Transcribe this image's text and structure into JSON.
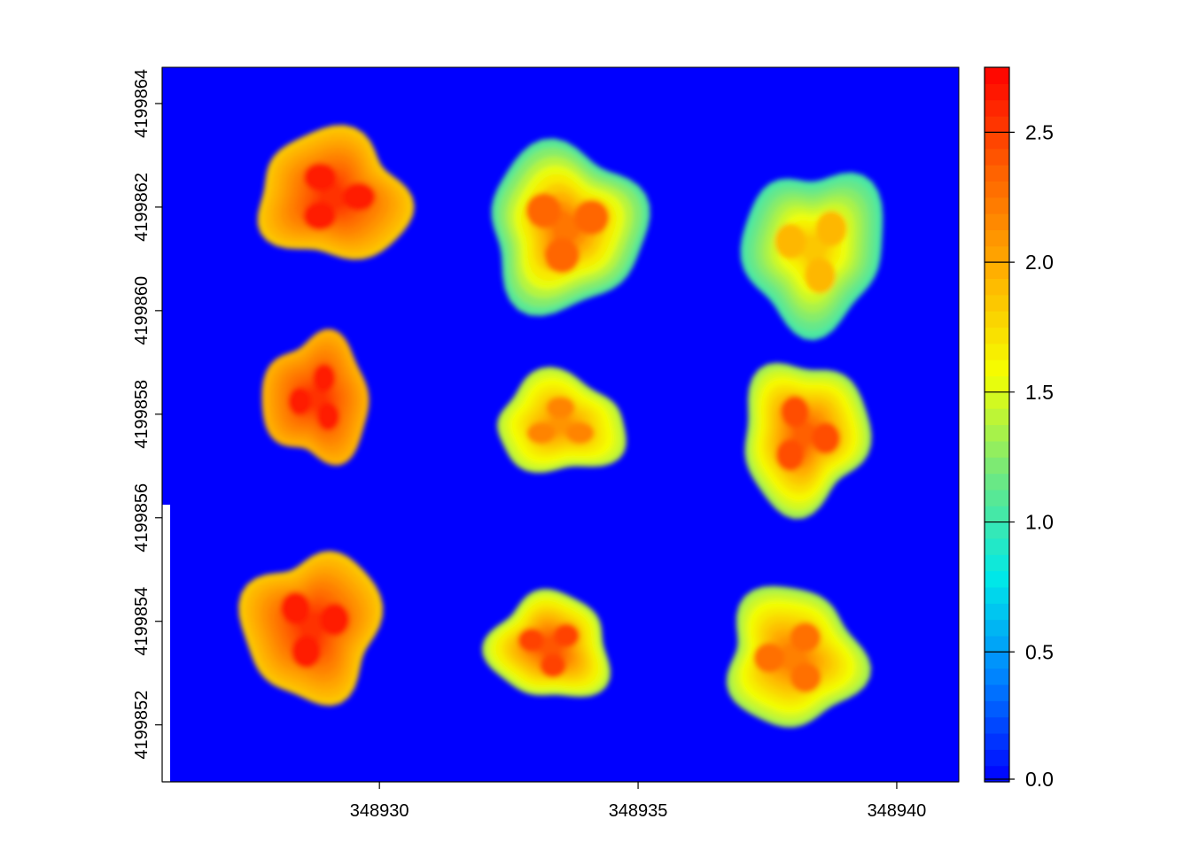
{
  "chart_data": {
    "type": "heatmap",
    "title": "",
    "xlabel": "",
    "ylabel": "",
    "xlim": [
      348925.8,
      348941.2
    ],
    "ylim": [
      4199850.9,
      4199864.7
    ],
    "x_ticks": [
      348930,
      348935,
      348940
    ],
    "x_tick_labels": [
      "348930",
      "348935",
      "348940"
    ],
    "y_ticks": [
      4199852,
      4199854,
      4199856,
      4199858,
      4199860,
      4199862,
      4199864
    ],
    "y_tick_labels": [
      "4199852",
      "4199854",
      "4199856",
      "4199858",
      "4199860",
      "4199862",
      "4199864"
    ],
    "background_value": 0.0,
    "colorbar": {
      "range": [
        0.0,
        2.75
      ],
      "ticks": [
        0.0,
        0.5,
        1.0,
        1.5,
        2.0,
        2.5
      ],
      "tick_labels": [
        "0.0",
        "0.5",
        "1.0",
        "1.5",
        "2.0",
        "2.5"
      ],
      "palette": [
        "#0000ff",
        "#0080ff",
        "#00e8e8",
        "#6fe880",
        "#f5ff00",
        "#ffb000",
        "#ff6000",
        "#ff0000"
      ]
    },
    "blobs": [
      {
        "row": 1,
        "col": 1,
        "cx": 348929.1,
        "cy": 4199862.2,
        "rx": 1.45,
        "ry": 1.25,
        "peak": 2.55,
        "edge": 1.85
      },
      {
        "row": 1,
        "col": 2,
        "cx": 348933.6,
        "cy": 4199861.6,
        "rx": 1.55,
        "ry": 1.55,
        "peak": 2.25,
        "edge": 1.1
      },
      {
        "row": 1,
        "col": 3,
        "cx": 348938.4,
        "cy": 4199861.2,
        "rx": 1.35,
        "ry": 1.55,
        "peak": 1.85,
        "edge": 1.05
      },
      {
        "row": 2,
        "col": 1,
        "cx": 348928.8,
        "cy": 4199858.3,
        "rx": 1.0,
        "ry": 1.25,
        "peak": 2.55,
        "edge": 1.95
      },
      {
        "row": 2,
        "col": 2,
        "cx": 348933.5,
        "cy": 4199857.8,
        "rx": 1.25,
        "ry": 0.95,
        "peak": 2.1,
        "edge": 1.4
      },
      {
        "row": 2,
        "col": 3,
        "cx": 348938.2,
        "cy": 4199857.6,
        "rx": 1.25,
        "ry": 1.4,
        "peak": 2.35,
        "edge": 1.35
      },
      {
        "row": 3,
        "col": 1,
        "cx": 348928.7,
        "cy": 4199853.9,
        "rx": 1.3,
        "ry": 1.45,
        "peak": 2.55,
        "edge": 1.85
      },
      {
        "row": 3,
        "col": 2,
        "cx": 348933.3,
        "cy": 4199853.5,
        "rx": 1.15,
        "ry": 1.05,
        "peak": 2.4,
        "edge": 1.4
      },
      {
        "row": 3,
        "col": 3,
        "cx": 348938.0,
        "cy": 4199853.3,
        "rx": 1.35,
        "ry": 1.3,
        "peak": 2.2,
        "edge": 1.35
      }
    ]
  }
}
